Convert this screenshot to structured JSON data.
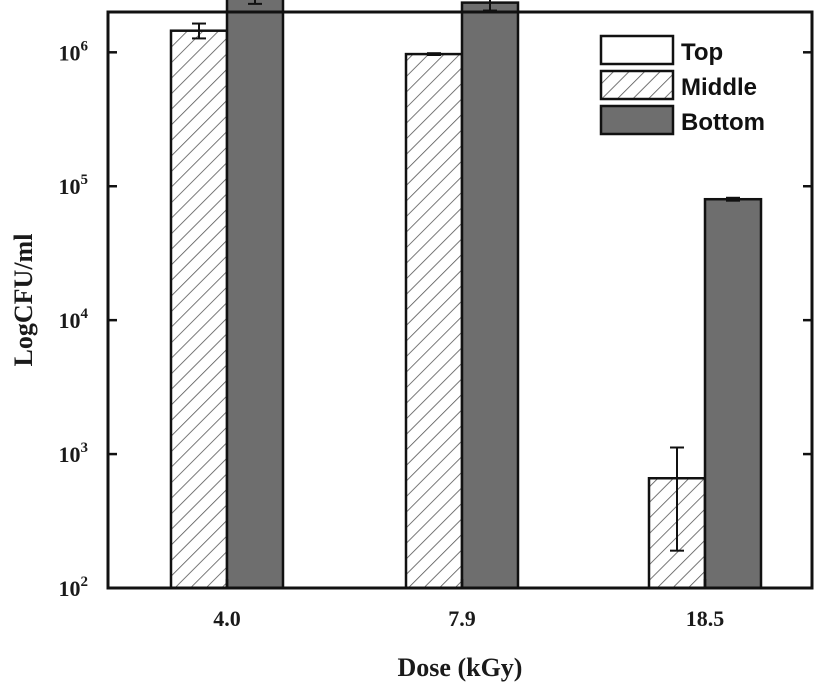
{
  "chart_data": {
    "type": "bar",
    "y_scale": "log",
    "ylim": [
      100,
      2000000
    ],
    "xlabel": "Dose (kGy)",
    "ylabel": "LogCFU/ml",
    "categories": [
      "4.0",
      "7.9",
      "18.5"
    ],
    "y_ticks": [
      {
        "value": 100,
        "base": "10",
        "exp": "2"
      },
      {
        "value": 1000,
        "base": "10",
        "exp": "3"
      },
      {
        "value": 10000,
        "base": "10",
        "exp": "4"
      },
      {
        "value": 100000,
        "base": "10",
        "exp": "5"
      },
      {
        "value": 1000000,
        "base": "10",
        "exp": "6"
      }
    ],
    "series": [
      {
        "name": "Top",
        "values": [
          null,
          null,
          null
        ],
        "errors": [
          null,
          null,
          null
        ],
        "style": "open"
      },
      {
        "name": "Middle",
        "values": [
          1450000,
          970000,
          660
        ],
        "errors_low": [
          1270000,
          955000,
          190
        ],
        "errors_high": [
          1640000,
          985000,
          1120
        ],
        "style": "hatched"
      },
      {
        "name": "Bottom",
        "values": [
          2650000,
          2350000,
          80000
        ],
        "errors_low": [
          2300000,
          2050000,
          78000
        ],
        "errors_high": [
          3050000,
          2700000,
          82000
        ],
        "style": "solid"
      }
    ],
    "legend_position": "top-right",
    "grid": false,
    "colors": {
      "bottom_fill": "#6e6e6e",
      "outline": "#111111",
      "hatch": "#555555"
    }
  }
}
